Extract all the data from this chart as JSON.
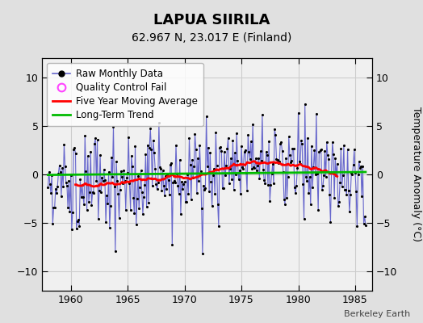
{
  "title": "LAPUA SIIRILA",
  "subtitle": "62.967 N, 23.017 E (Finland)",
  "ylabel": "Temperature Anomaly (°C)",
  "credit": "Berkeley Earth",
  "xlim": [
    1957.5,
    1986.5
  ],
  "ylim": [
    -12,
    12
  ],
  "yticks": [
    -10,
    -5,
    0,
    5,
    10
  ],
  "xticks": [
    1960,
    1965,
    1970,
    1975,
    1980,
    1985
  ],
  "fig_bg_color": "#e0e0e0",
  "plot_bg_color": "#f0f0f0",
  "raw_line_color": "#6666cc",
  "raw_dot_color": "#000000",
  "moving_avg_color": "#ff0000",
  "trend_color": "#00bb00",
  "qc_fail_color": "#ff44ff",
  "legend_items": [
    "Raw Monthly Data",
    "Quality Control Fail",
    "Five Year Moving Average",
    "Long-Term Trend"
  ],
  "title_fontsize": 13,
  "subtitle_fontsize": 10,
  "tick_fontsize": 9,
  "ylabel_fontsize": 9,
  "legend_fontsize": 8.5,
  "credit_fontsize": 8
}
